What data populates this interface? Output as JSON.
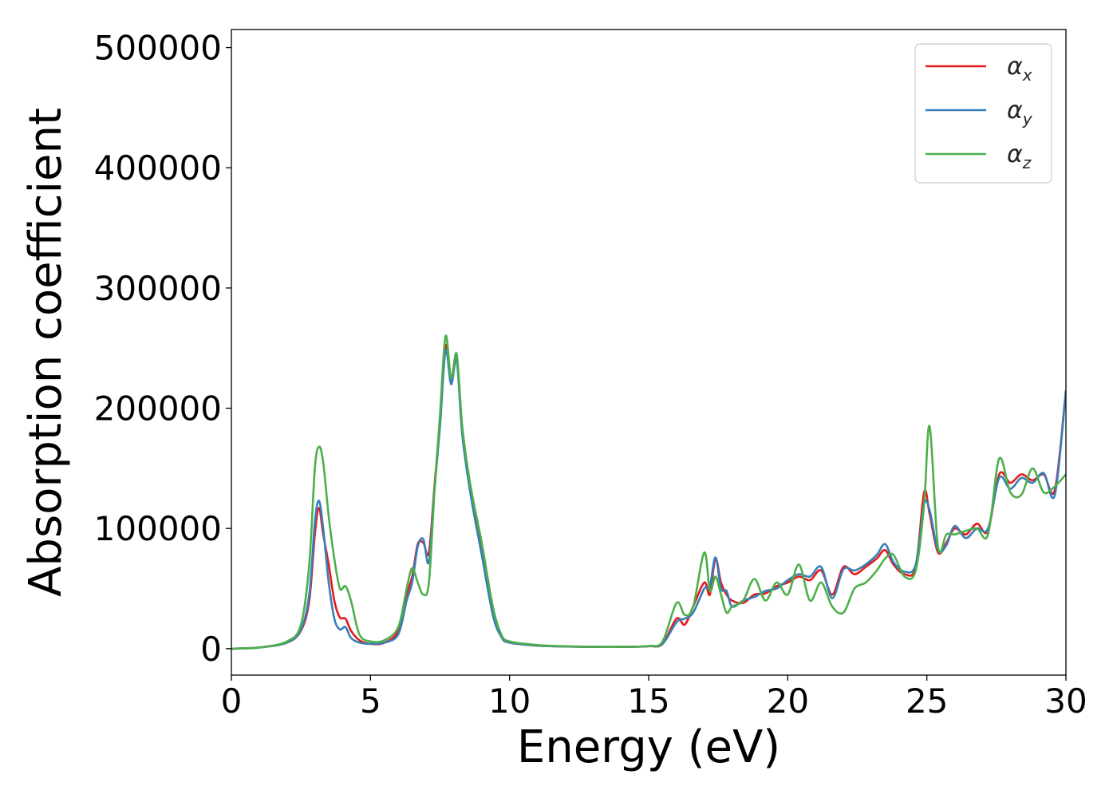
{
  "chart_data": {
    "type": "line",
    "xlabel": "Energy (eV)",
    "ylabel": "Absorption coefficient",
    "xlim": [
      0,
      30
    ],
    "ylim": [
      -22000,
      515000
    ],
    "xticks": [
      "0",
      "5",
      "10",
      "15",
      "20",
      "25",
      "30"
    ],
    "yticks": [
      "0",
      "100000",
      "200000",
      "300000",
      "400000",
      "500000"
    ],
    "grid": false,
    "legend_position": "top-right",
    "series": [
      {
        "name": "α_x",
        "symbol": "α",
        "subscript": "x",
        "color": "#e41a1c",
        "x": [
          0,
          1,
          2,
          2.5,
          2.8,
          3.0,
          3.15,
          3.3,
          3.5,
          3.7,
          3.9,
          4.1,
          4.3,
          4.6,
          5.0,
          5.5,
          6.0,
          6.3,
          6.5,
          6.7,
          6.9,
          7.1,
          7.3,
          7.5,
          7.7,
          7.9,
          8.1,
          8.3,
          8.6,
          9.0,
          9.4,
          9.7,
          10.0,
          11,
          12,
          13,
          14,
          15,
          15.5,
          16.0,
          16.3,
          16.6,
          17.0,
          17.2,
          17.4,
          17.6,
          17.8,
          18.0,
          18.4,
          18.8,
          19.2,
          19.6,
          20.0,
          20.4,
          20.8,
          21.2,
          21.6,
          22.0,
          22.4,
          22.8,
          23.2,
          23.5,
          23.8,
          24.2,
          24.6,
          24.9,
          25.1,
          25.4,
          25.7,
          26.0,
          26.4,
          26.8,
          27.2,
          27.6,
          28.0,
          28.4,
          28.8,
          29.2,
          29.6,
          30.0
        ],
        "y": [
          0,
          1000,
          5000,
          15000,
          40000,
          95000,
          117000,
          95000,
          70000,
          40000,
          26000,
          25000,
          15000,
          7000,
          4000,
          5000,
          15000,
          45000,
          60000,
          87000,
          88000,
          80000,
          135000,
          190000,
          252000,
          224000,
          242000,
          180000,
          130000,
          80000,
          30000,
          10000,
          5000,
          2500,
          1800,
          1500,
          1500,
          2000,
          4000,
          25000,
          20000,
          35000,
          55000,
          45000,
          75000,
          55000,
          45000,
          40000,
          38000,
          45000,
          46000,
          52000,
          55000,
          60000,
          57000,
          65000,
          45000,
          68000,
          62000,
          68000,
          75000,
          82000,
          70000,
          62000,
          68000,
          130000,
          112000,
          80000,
          88000,
          100000,
          95000,
          104000,
          98000,
          145000,
          138000,
          145000,
          140000,
          145000,
          132000,
          215000
        ]
      },
      {
        "name": "α_y",
        "symbol": "α",
        "subscript": "y",
        "color": "#377eb8",
        "x": [
          0,
          1,
          2,
          2.5,
          2.8,
          3.0,
          3.15,
          3.3,
          3.5,
          3.7,
          3.9,
          4.1,
          4.3,
          4.6,
          5.0,
          5.5,
          6.0,
          6.3,
          6.5,
          6.7,
          6.9,
          7.1,
          7.3,
          7.5,
          7.7,
          7.9,
          8.1,
          8.3,
          8.6,
          9.0,
          9.4,
          9.7,
          10.0,
          11,
          12,
          13,
          14,
          15,
          15.5,
          16.0,
          16.3,
          16.6,
          17.0,
          17.2,
          17.4,
          17.6,
          17.8,
          18.0,
          18.4,
          18.8,
          19.2,
          19.6,
          20.0,
          20.4,
          20.8,
          21.2,
          21.6,
          22.0,
          22.4,
          22.8,
          23.2,
          23.5,
          23.8,
          24.2,
          24.6,
          24.9,
          25.1,
          25.4,
          25.7,
          26.0,
          26.4,
          26.8,
          27.2,
          27.6,
          28.0,
          28.4,
          28.8,
          29.2,
          29.6,
          30.0
        ],
        "y": [
          0,
          1000,
          5000,
          16000,
          45000,
          105000,
          123000,
          100000,
          55000,
          25000,
          16000,
          18000,
          9000,
          5000,
          4000,
          5000,
          12000,
          40000,
          55000,
          85000,
          91000,
          72000,
          132000,
          185000,
          248000,
          220000,
          240000,
          178000,
          128000,
          78000,
          28000,
          10000,
          5000,
          2500,
          1800,
          1500,
          1500,
          2000,
          4000,
          22000,
          25000,
          30000,
          50000,
          52000,
          76000,
          50000,
          48000,
          35000,
          40000,
          43000,
          48000,
          50000,
          57000,
          62000,
          60000,
          68000,
          42000,
          66000,
          65000,
          70000,
          78000,
          87000,
          72000,
          64000,
          70000,
          120000,
          115000,
          82000,
          86000,
          102000,
          92000,
          100000,
          100000,
          142000,
          133000,
          142000,
          138000,
          146000,
          128000,
          215000
        ]
      },
      {
        "name": "α_z",
        "symbol": "α",
        "subscript": "z",
        "color": "#4daf4a",
        "x": [
          0,
          1,
          2,
          2.5,
          2.8,
          3.0,
          3.15,
          3.3,
          3.5,
          3.7,
          3.9,
          4.1,
          4.3,
          4.6,
          5.0,
          5.5,
          6.0,
          6.3,
          6.5,
          6.7,
          6.9,
          7.1,
          7.3,
          7.5,
          7.7,
          7.9,
          8.1,
          8.3,
          8.6,
          9.0,
          9.4,
          9.7,
          10.0,
          11,
          12,
          13,
          14,
          15,
          15.5,
          16.0,
          16.3,
          16.6,
          17.0,
          17.2,
          17.4,
          17.6,
          17.8,
          18.0,
          18.4,
          18.8,
          19.2,
          19.6,
          20.0,
          20.4,
          20.8,
          21.2,
          21.6,
          22.0,
          22.4,
          22.8,
          23.2,
          23.5,
          23.8,
          24.2,
          24.6,
          24.9,
          25.1,
          25.4,
          25.7,
          26.0,
          26.4,
          26.8,
          27.2,
          27.6,
          28.0,
          28.4,
          28.8,
          29.2,
          29.6,
          30.0
        ],
        "y": [
          0,
          1000,
          6000,
          20000,
          70000,
          150000,
          168000,
          155000,
          110000,
          75000,
          50000,
          52000,
          40000,
          12000,
          6000,
          7000,
          18000,
          50000,
          67000,
          55000,
          45000,
          55000,
          130000,
          195000,
          260000,
          225000,
          245000,
          185000,
          135000,
          88000,
          35000,
          12000,
          6000,
          3000,
          2000,
          1600,
          1500,
          2200,
          6000,
          38000,
          28000,
          35000,
          80000,
          48000,
          60000,
          45000,
          30000,
          35000,
          40000,
          58000,
          40000,
          55000,
          45000,
          70000,
          40000,
          55000,
          35000,
          30000,
          50000,
          55000,
          65000,
          75000,
          78000,
          60000,
          65000,
          120000,
          185000,
          85000,
          95000,
          95000,
          98000,
          100000,
          95000,
          158000,
          130000,
          128000,
          150000,
          130000,
          135000,
          145000
        ]
      }
    ]
  }
}
